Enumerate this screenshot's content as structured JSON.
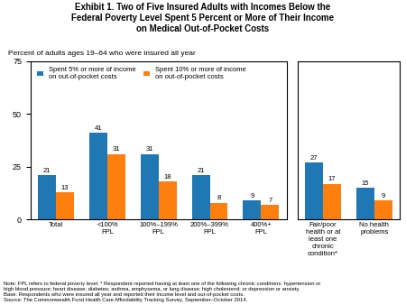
{
  "chart_data": [
    {
      "type": "bar",
      "title": "Exhibit 1. Two of Five Insured Adults with Incomes Below the\nFederal Poverty Level Spent 5 Percent or More of Their Income\non Medical Out-of-Pocket Costs",
      "subtitle": "Percent of adults ages 19–64 who were insured all year",
      "annotations": [
        "Note: FPL refers to federal poverty level. * Respondent reported having at least one of the following chronic conditions: hypertension or\nhigh blood pressure; heart disease; diabetes; asthma, emphysema, or lung disease; high cholesterol; or depression or anxiety.\nBase: Respondents who were insured all year and reported their income level and out-of-pocket costs.\nSource: The Commonwealth Fund Health Care Affordability Tracking Survey, September–October 2014."
      ],
      "categories": [
        "Total",
        "<100%\nFPL",
        "100%–199%\nFPL",
        "200%–399%\nFPL",
        "400%+\nFPL"
      ],
      "series": [
        {
          "name": "Spent 5% or more of income\non out-of-pocket costs",
          "values": [
            21,
            41,
            31,
            21,
            9
          ]
        },
        {
          "name": "Spent 10% or more of income\non out-of-pocket costs",
          "values": [
            13,
            31,
            18,
            8,
            7
          ]
        }
      ],
      "ylim": [
        0,
        75
      ],
      "yticks": [
        0,
        25,
        50,
        75
      ],
      "data_labels": true,
      "legend": "upper left"
    },
    {
      "type": "bar",
      "categories": [
        "Fair/poor\nhealth or at\nleast one\nchronic\ncondition*",
        "No health\nproblems"
      ],
      "series": [
        {
          "values": [
            27,
            15
          ]
        },
        {
          "values": [
            17,
            9
          ]
        }
      ],
      "ylim": [
        0,
        75
      ],
      "data_labels": true,
      "tick_labels": "x"
    }
  ]
}
